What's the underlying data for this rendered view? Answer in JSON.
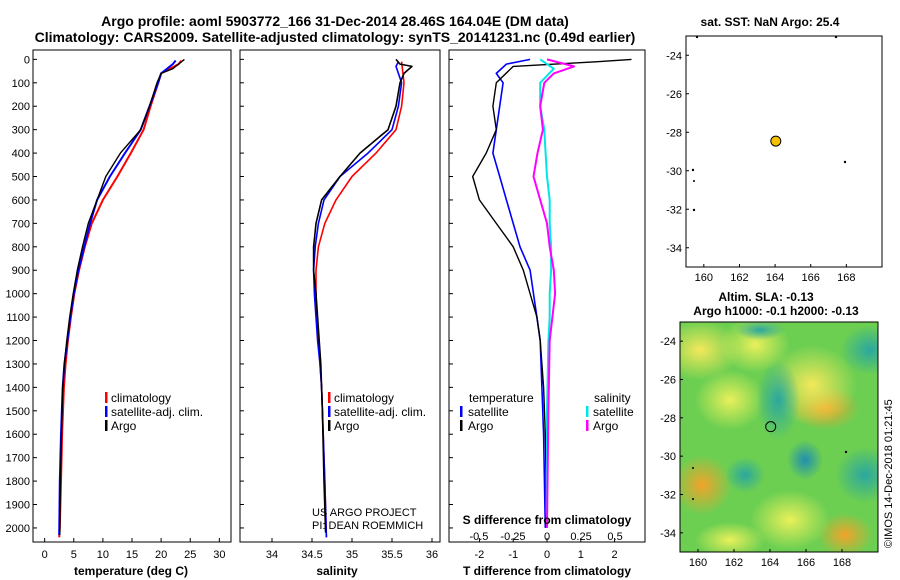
{
  "colors": {
    "climatology": "#ff0000",
    "satellite": "#0000ff",
    "argo": "#000000",
    "sat_salinity": "#00e5e5",
    "argo_salinity": "#ff00ff",
    "float_marker": "#f5c000"
  },
  "header": {
    "title_line1": "Argo profile: aoml 5903772_166 31-Dec-2014 28.46S 164.04E (DM data)",
    "title_line2": "Climatology: CARS2009. Satellite-adjusted climatology: synTS_20141231.nc (0.49d earlier)"
  },
  "depth_axis": {
    "ticks": [
      "0",
      "100",
      "200",
      "300",
      "400",
      "500",
      "600",
      "700",
      "800",
      "900",
      "1000",
      "1100",
      "1200",
      "1300",
      "1400",
      "1500",
      "1600",
      "1700",
      "1800",
      "1900",
      "2000"
    ]
  },
  "chart_data": [
    {
      "type": "line",
      "id": "temperature",
      "xlabel": "temperature (deg C)",
      "xlim": [
        -2,
        32
      ],
      "ylim": [
        2060,
        -40
      ],
      "xticks": [
        "0",
        "5",
        "10",
        "15",
        "20",
        "25",
        "30"
      ],
      "legend": [
        "climatology",
        "satellite-adj. clim.",
        "Argo"
      ],
      "series": [
        {
          "name": "climatology",
          "x": [
            23.5,
            23,
            20,
            19.5,
            18.2,
            17,
            14.8,
            12.5,
            10,
            8.1,
            6.9,
            5.9,
            5.1,
            4.5,
            4,
            3.6,
            3.3,
            3,
            2.8,
            2.6,
            2.5
          ],
          "y": [
            5,
            20,
            60,
            100,
            200,
            300,
            400,
            500,
            600,
            700,
            800,
            900,
            1000,
            1100,
            1200,
            1300,
            1400,
            1600,
            1800,
            2000,
            2040
          ]
        },
        {
          "name": "satellite-adj. clim.",
          "x": [
            22.5,
            22,
            20,
            19.5,
            18,
            16.5,
            13.8,
            11.2,
            9,
            7.8,
            6.8,
            5.8,
            5,
            4.4,
            3.9,
            3.4,
            3.1,
            2.8,
            2.6,
            2.5
          ],
          "y": [
            5,
            20,
            60,
            100,
            200,
            300,
            400,
            500,
            600,
            700,
            800,
            900,
            1000,
            1100,
            1200,
            1300,
            1400,
            1600,
            1800,
            2030
          ]
        },
        {
          "name": "Argo",
          "x": [
            24,
            23,
            22,
            20,
            19.3,
            18,
            16.5,
            13,
            10.5,
            9,
            7.5,
            6.5,
            5.6,
            4.9,
            4.3,
            3.8,
            3.4,
            3.1,
            2.9,
            2.7,
            2.6
          ],
          "y": [
            0,
            20,
            40,
            60,
            100,
            200,
            300,
            400,
            500,
            600,
            700,
            800,
            900,
            1000,
            1100,
            1200,
            1300,
            1400,
            1600,
            1800,
            2030
          ]
        }
      ]
    },
    {
      "type": "line",
      "id": "salinity",
      "xlabel": "salinity",
      "xlim": [
        33.6,
        36.1
      ],
      "ylim": [
        2060,
        -40
      ],
      "xticks": [
        "34",
        "34.5",
        "35",
        "35.5",
        "36"
      ],
      "legend": [
        "climatology",
        "satellite-adj. clim.",
        "Argo"
      ],
      "series": [
        {
          "name": "climatology",
          "x": [
            35.62,
            35.65,
            35.62,
            35.55,
            35.3,
            35.0,
            34.8,
            34.66,
            34.58,
            34.55,
            34.55,
            34.56,
            34.58,
            34.6,
            34.62,
            34.64,
            34.66,
            34.68
          ],
          "y": [
            10,
            100,
            200,
            300,
            400,
            500,
            600,
            700,
            800,
            900,
            1000,
            1100,
            1200,
            1300,
            1400,
            1600,
            1800,
            2040
          ]
        },
        {
          "name": "satellite-adj. clim.",
          "x": [
            35.58,
            35.55,
            35.62,
            35.58,
            35.5,
            35.2,
            34.85,
            34.65,
            34.58,
            34.54,
            34.52,
            34.53,
            34.55,
            34.57,
            34.6,
            34.62,
            34.64,
            34.66,
            34.68
          ],
          "y": [
            10,
            30,
            100,
            200,
            300,
            400,
            500,
            600,
            700,
            800,
            900,
            1000,
            1100,
            1200,
            1300,
            1400,
            1600,
            1800,
            2040
          ]
        },
        {
          "name": "Argo",
          "x": [
            35.55,
            35.6,
            35.75,
            35.65,
            35.6,
            35.55,
            35.45,
            35.1,
            34.85,
            34.62,
            34.55,
            34.52,
            34.52,
            34.52,
            34.55,
            34.57,
            34.59,
            34.61,
            34.63,
            34.65,
            34.67
          ],
          "y": [
            0,
            20,
            30,
            60,
            100,
            200,
            300,
            400,
            500,
            600,
            700,
            800,
            850,
            900,
            1000,
            1100,
            1200,
            1300,
            1500,
            1800,
            2020
          ]
        }
      ]
    },
    {
      "type": "line",
      "id": "differences",
      "xlabel": "T difference from climatology",
      "xlabel_top": "S difference from climatology",
      "xlim": [
        -2.9,
        2.9
      ],
      "ylim": [
        2060,
        -40
      ],
      "xticks": [
        "-2",
        "-1",
        "0",
        "1",
        "2"
      ],
      "xticks_top": [
        "-0.5",
        "-0.25",
        "0",
        "0.25",
        "0.5"
      ],
      "legend_header_left": "temperature",
      "legend_header_right": "salinity",
      "legend_left": [
        "satellite",
        "Argo"
      ],
      "legend_right": [
        "satellite",
        "Argo"
      ],
      "series": [
        {
          "name": "T satellite",
          "x": [
            -0.5,
            -1.2,
            -1.5,
            -1.3,
            -1.4,
            -1.5,
            -1.6,
            -1.4,
            -1.2,
            -1,
            -0.8,
            -0.5,
            -0.4,
            -0.3,
            -0.2,
            -0.15,
            -0.1,
            -0.05
          ],
          "y": [
            0,
            20,
            60,
            100,
            200,
            300,
            400,
            500,
            600,
            700,
            800,
            900,
            1000,
            1100,
            1200,
            1400,
            1600,
            2000
          ]
        },
        {
          "name": "T Argo",
          "x": [
            2.5,
            1.5,
            -1,
            -1.5,
            -1.6,
            -1.5,
            -1.8,
            -2.2,
            -2,
            -1.5,
            -1,
            -0.7,
            -0.5,
            -0.3,
            -0.2,
            -0.1,
            -0.05,
            0
          ],
          "y": [
            0,
            10,
            30,
            100,
            200,
            300,
            400,
            500,
            600,
            700,
            800,
            900,
            1000,
            1100,
            1200,
            1400,
            1600,
            2000
          ]
        },
        {
          "name": "S satellite",
          "x": [
            -0.05,
            0.05,
            -0.05,
            -0.05,
            -0.02,
            -0.01,
            0,
            0.02,
            0.02,
            0.03,
            0.03,
            0.02,
            0.02,
            0.01,
            0,
            0
          ],
          "y": [
            0,
            40,
            100,
            200,
            300,
            400,
            500,
            600,
            700,
            800,
            900,
            1000,
            1100,
            1200,
            1500,
            2000
          ]
        },
        {
          "name": "S Argo",
          "x": [
            0,
            0.2,
            0.05,
            -0.02,
            -0.05,
            -0.03,
            -0.07,
            -0.1,
            -0.05,
            0,
            0.02,
            0.05,
            0.06,
            0.04,
            0.02,
            0.01,
            0
          ],
          "y": [
            0,
            30,
            60,
            100,
            200,
            300,
            400,
            500,
            600,
            700,
            800,
            900,
            1000,
            1100,
            1200,
            1500,
            2000
          ]
        }
      ]
    },
    {
      "type": "scatter",
      "id": "sst_map",
      "title": "sat. SST: NaN Argo: 25.4",
      "xlim": [
        159,
        170
      ],
      "ylim": [
        -35,
        -23
      ],
      "xticks": [
        "160",
        "162",
        "164",
        "166",
        "168"
      ],
      "yticks": [
        "-24",
        "-26",
        "-28",
        "-30",
        "-32",
        "-34"
      ],
      "float_position": {
        "lon": 164.04,
        "lat": -28.46
      }
    },
    {
      "type": "heatmap",
      "id": "sla_map",
      "title_line1": "Altim. SLA: -0.13",
      "title_line2": "Argo h1000: -0.1 h2000: -0.13",
      "xlim": [
        159,
        170
      ],
      "ylim": [
        -35,
        -23
      ],
      "xticks": [
        "160",
        "162",
        "164",
        "166",
        "168"
      ],
      "yticks": [
        "-24",
        "-26",
        "-28",
        "-30",
        "-32",
        "-34"
      ],
      "float_position": {
        "lon": 164.04,
        "lat": -28.46
      }
    }
  ],
  "credits": {
    "project_line1": "US ARGO PROJECT",
    "project_line2": "PI: DEAN ROEMMICH",
    "imos": "©IMOS 14-Dec-2018 01:21:45"
  }
}
